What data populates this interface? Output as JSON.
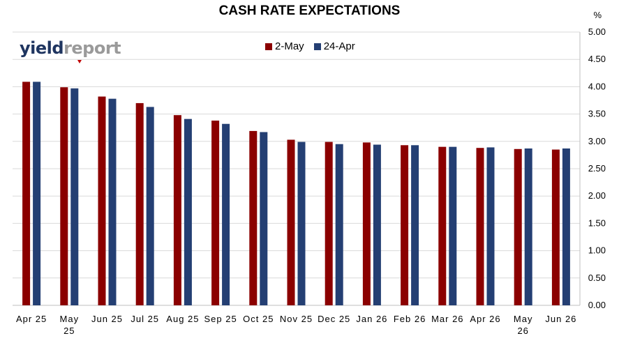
{
  "chart_data": {
    "type": "bar",
    "title": "CASH RATE EXPECTATIONS",
    "y_unit": "%",
    "ylim": [
      0,
      5
    ],
    "y_ticks": [
      "0.00",
      "0.50",
      "1.00",
      "1.50",
      "2.00",
      "2.50",
      "3.00",
      "3.50",
      "4.00",
      "4.50",
      "5.00"
    ],
    "y_axis_side": "right",
    "grid": true,
    "legend_position": "top-center",
    "categories": [
      "Apr 25",
      "May 25",
      "Jun 25",
      "Jul 25",
      "Aug 25",
      "Sep 25",
      "Oct 25",
      "Nov 25",
      "Dec 25",
      "Jan 26",
      "Feb 26",
      "Mar 26",
      "Apr 26",
      "May 26",
      "Jun 26"
    ],
    "series": [
      {
        "name": "2-May",
        "color": "#8b0000",
        "values": [
          4.09,
          3.99,
          3.82,
          3.7,
          3.48,
          3.38,
          3.19,
          3.03,
          2.99,
          2.98,
          2.93,
          2.9,
          2.88,
          2.86,
          2.85
        ]
      },
      {
        "name": "24-Apr",
        "color": "#243f73",
        "values": [
          4.09,
          3.97,
          3.78,
          3.63,
          3.41,
          3.32,
          3.17,
          2.99,
          2.95,
          2.94,
          2.93,
          2.9,
          2.89,
          2.87,
          2.87
        ]
      }
    ]
  },
  "logo": {
    "part1": "yield",
    "part2": "report"
  }
}
